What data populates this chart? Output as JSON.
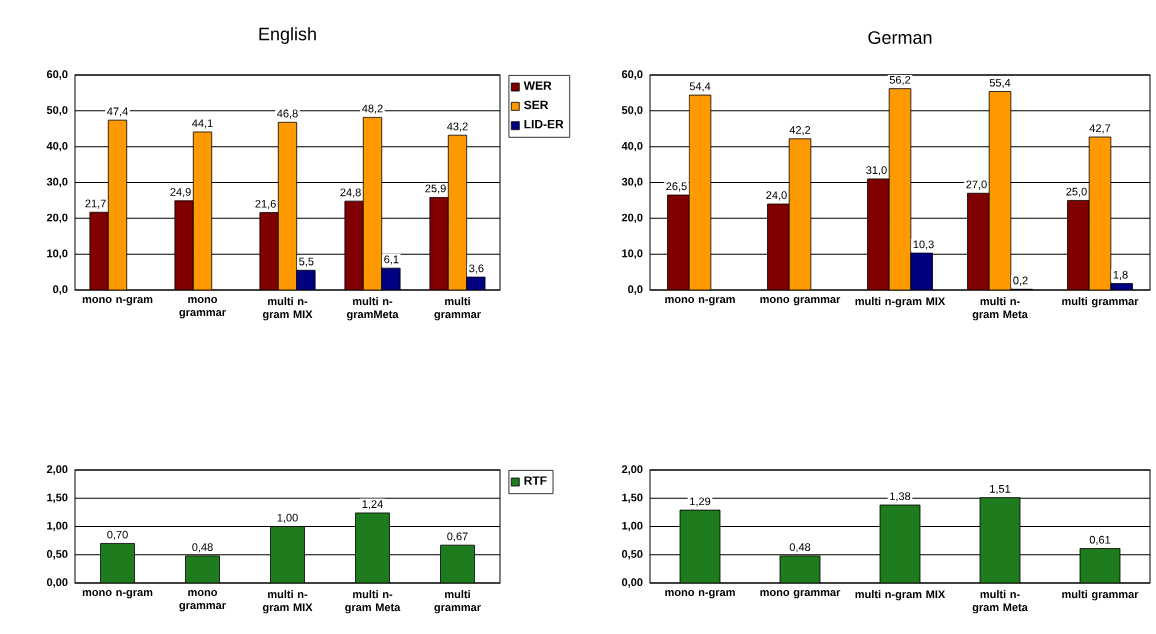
{
  "chart_data": [
    {
      "type": "bar",
      "title": "English",
      "categories": [
        "mono n-gram",
        "mono grammar",
        "multi n-gram MIX",
        "multi n-gramMeta",
        "multi grammar"
      ],
      "series": [
        {
          "name": "WER",
          "color": "#800000",
          "values": [
            21.7,
            24.9,
            21.6,
            24.8,
            25.9
          ],
          "value_labels": [
            "21,7",
            "24,9",
            "21,6",
            "24,8",
            "25,9"
          ]
        },
        {
          "name": "SER",
          "color": "#ff9900",
          "values": [
            47.4,
            44.1,
            46.8,
            48.2,
            43.2
          ],
          "value_labels": [
            "47,4",
            "44,1",
            "46,8",
            "48,2",
            "43,2"
          ]
        },
        {
          "name": "LID-ER",
          "color": "#000080",
          "values": [
            null,
            null,
            5.5,
            6.1,
            3.6
          ],
          "value_labels": [
            null,
            null,
            "5,5",
            "6,1",
            "3,6"
          ]
        }
      ],
      "ylim": [
        0,
        60
      ],
      "yticks": [
        {
          "value": 0,
          "label": "0,0"
        },
        {
          "value": 10,
          "label": "10,0"
        },
        {
          "value": 20,
          "label": "20,0"
        },
        {
          "value": 30,
          "label": "30,0"
        },
        {
          "value": 40,
          "label": "40,0"
        },
        {
          "value": 50,
          "label": "50,0"
        },
        {
          "value": 60,
          "label": "60,0"
        }
      ],
      "grid": "y",
      "legend": "top right"
    },
    {
      "type": "bar",
      "title": "German",
      "categories": [
        "mono n-gram",
        "mono grammar",
        "multi n-gram MIX",
        "multi n-gram Meta",
        "multi grammar"
      ],
      "series": [
        {
          "color": "#800000",
          "values": [
            26.5,
            24.0,
            31.0,
            27.0,
            25.0
          ],
          "value_labels": [
            "26,5",
            "24,0",
            "31,0",
            "27,0",
            "25,0"
          ]
        },
        {
          "color": "#ff9900",
          "values": [
            54.4,
            42.2,
            56.2,
            55.4,
            42.7
          ],
          "value_labels": [
            "54,4",
            "42,2",
            "56,2",
            "55,4",
            "42,7"
          ]
        },
        {
          "color": "#000080",
          "values": [
            null,
            null,
            10.3,
            0.2,
            1.8
          ],
          "value_labels": [
            null,
            null,
            "10,3",
            "0,2",
            "1,8"
          ]
        }
      ],
      "ylim": [
        0,
        60
      ],
      "yticks": [
        {
          "value": 0,
          "label": "0,0"
        },
        {
          "value": 10,
          "label": "10,0"
        },
        {
          "value": 20,
          "label": "20,0"
        },
        {
          "value": 30,
          "label": "30,0"
        },
        {
          "value": 40,
          "label": "40,0"
        },
        {
          "value": 50,
          "label": "50,0"
        },
        {
          "value": 60,
          "label": "60,0"
        }
      ],
      "grid": "y"
    },
    {
      "type": "bar",
      "categories": [
        "mono n-gram",
        "mono grammar",
        "multi n-gram MIX",
        "multi n-gram Meta",
        "multi grammar"
      ],
      "series": [
        {
          "name": "RTF",
          "color": "#1e7b1e",
          "values": [
            0.7,
            0.48,
            1.0,
            1.24,
            0.67
          ],
          "value_labels": [
            "0,70",
            "0,48",
            "1,00",
            "1,24",
            "0,67"
          ]
        }
      ],
      "ylim": [
        0,
        2
      ],
      "yticks": [
        {
          "value": 0,
          "label": "0,00"
        },
        {
          "value": 0.5,
          "label": "0,50"
        },
        {
          "value": 1,
          "label": "1,00"
        },
        {
          "value": 1.5,
          "label": "1,50"
        },
        {
          "value": 2,
          "label": "2,00"
        }
      ],
      "grid": "y",
      "legend": "top right"
    },
    {
      "type": "bar",
      "categories": [
        "mono n-gram",
        "mono grammar",
        "multi n-gram MIX",
        "multi n-gram Meta",
        "multi grammar"
      ],
      "series": [
        {
          "color": "#1e7b1e",
          "values": [
            1.29,
            0.48,
            1.38,
            1.51,
            0.61
          ],
          "value_labels": [
            "1,29",
            "0,48",
            "1,38",
            "1,51",
            "0,61"
          ]
        }
      ],
      "ylim": [
        0,
        2
      ],
      "yticks": [
        {
          "value": 0,
          "label": "0,00"
        },
        {
          "value": 0.5,
          "label": "0,50"
        },
        {
          "value": 1,
          "label": "1,00"
        },
        {
          "value": 1.5,
          "label": "1,50"
        },
        {
          "value": 2,
          "label": "2,00"
        }
      ],
      "grid": "y"
    }
  ]
}
